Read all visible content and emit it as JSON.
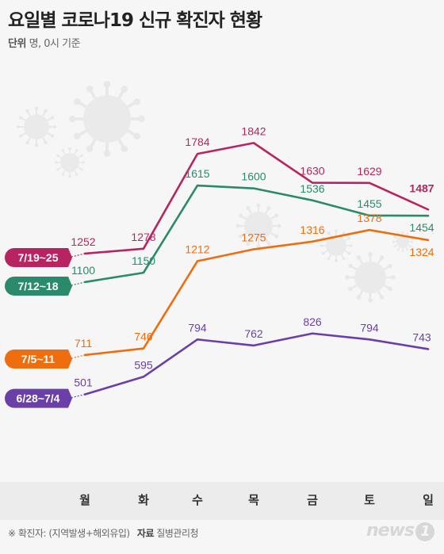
{
  "header": {
    "title": "요일별 코로나19 신규 확진자 현황",
    "unit_label": "단위",
    "unit_text": "명, 0시 기준"
  },
  "footer": {
    "note": "※ 확진자: (지역발생+해외유입)",
    "source_label": "자료",
    "source": "질병관리청",
    "logo_text": "news",
    "logo_mark": "1"
  },
  "chart_data": {
    "type": "line",
    "title": "요일별 코로나19 신규 확진자 현황",
    "categories": [
      "월",
      "화",
      "수",
      "목",
      "금",
      "토",
      "일"
    ],
    "ylim": [
      400,
      1900
    ],
    "grid": false,
    "legend": "left",
    "series": [
      {
        "name": "7/19~25",
        "color": "#b8245f",
        "values": [
          1252,
          1278,
          1784,
          1842,
          1630,
          1629,
          1487
        ],
        "bold_last": true
      },
      {
        "name": "7/12~18",
        "color": "#2a8a6a",
        "values": [
          1100,
          1150,
          1615,
          1600,
          1536,
          1455,
          1454
        ]
      },
      {
        "name": "7/5~11",
        "color": "#ee6d0f",
        "values": [
          711,
          746,
          1212,
          1275,
          1316,
          1378,
          1324
        ]
      },
      {
        "name": "6/28~7/4",
        "color": "#6a3fa8",
        "values": [
          501,
          595,
          794,
          762,
          826,
          794,
          743
        ]
      }
    ]
  }
}
